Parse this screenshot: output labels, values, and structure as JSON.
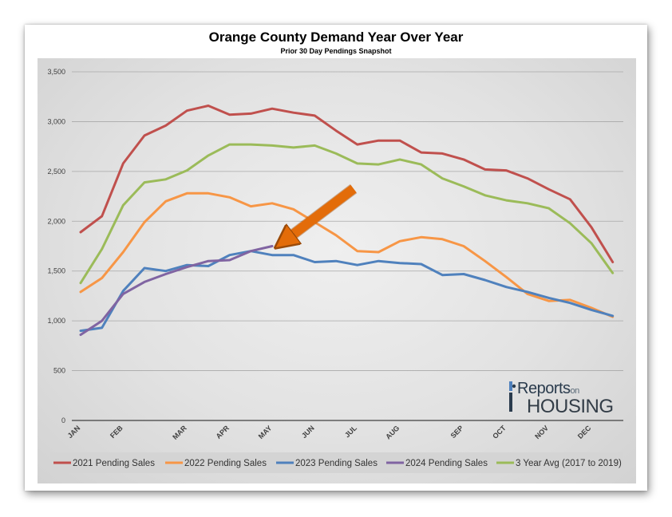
{
  "chart_data": {
    "type": "line",
    "title": "Orange County Demand Year Over Year",
    "subtitle": "Prior 30 Day Pendings Snapshot",
    "xlabel": "",
    "ylabel": "",
    "ylim": [
      0,
      3500
    ],
    "yticks": [
      "0",
      "500",
      "1,000",
      "1,500",
      "2,000",
      "2,500",
      "3,000",
      "3,500"
    ],
    "ytick_values": [
      0,
      500,
      1000,
      1500,
      2000,
      2500,
      3000,
      3500
    ],
    "x_tick_labels": [
      "JAN",
      "FEB",
      "MAR",
      "APR",
      "MAY",
      "JUN",
      "JUL",
      "AUG",
      "SEP",
      "OCT",
      "NOV",
      "DEC"
    ],
    "x_tick_positions": [
      0,
      2,
      5,
      7,
      9,
      11,
      13,
      15,
      18,
      20,
      22,
      24
    ],
    "x_range": [
      0,
      25.5
    ],
    "grid": true,
    "legend_position": "bottom",
    "series": [
      {
        "name": "2021 Pending Sales",
        "color": "#c0504d",
        "x": [
          0,
          1,
          2,
          3,
          4,
          5,
          6,
          7,
          8,
          9,
          10,
          11,
          12,
          13,
          14,
          15,
          16,
          17,
          18,
          19,
          20,
          21,
          22,
          23,
          24,
          25
        ],
        "values": [
          1890,
          2050,
          2580,
          2860,
          2960,
          3110,
          3160,
          3070,
          3080,
          3130,
          3090,
          3060,
          2910,
          2770,
          2810,
          2810,
          2690,
          2680,
          2620,
          2520,
          2510,
          2430,
          2320,
          2220,
          1940,
          1590
        ]
      },
      {
        "name": "2022 Pending Sales",
        "color": "#f79646",
        "x": [
          0,
          1,
          2,
          3,
          4,
          5,
          6,
          7,
          8,
          9,
          10,
          11,
          12,
          13,
          14,
          15,
          16,
          17,
          18,
          19,
          20,
          21,
          22,
          23,
          24,
          25
        ],
        "values": [
          1290,
          1430,
          1690,
          1990,
          2200,
          2280,
          2280,
          2240,
          2150,
          2180,
          2120,
          1990,
          1860,
          1700,
          1690,
          1800,
          1840,
          1820,
          1750,
          1600,
          1440,
          1270,
          1200,
          1210,
          1130,
          1040
        ]
      },
      {
        "name": "2023 Pending Sales",
        "color": "#4f81bd",
        "x": [
          0,
          1,
          2,
          3,
          4,
          5,
          6,
          7,
          8,
          9,
          10,
          11,
          12,
          13,
          14,
          15,
          16,
          17,
          18,
          19,
          20,
          21,
          22,
          23,
          24,
          25
        ],
        "values": [
          900,
          930,
          1300,
          1530,
          1500,
          1560,
          1550,
          1660,
          1700,
          1660,
          1660,
          1590,
          1600,
          1560,
          1600,
          1580,
          1570,
          1460,
          1470,
          1410,
          1340,
          1290,
          1230,
          1180,
          1110,
          1050
        ]
      },
      {
        "name": "2024 Pending Sales",
        "color": "#8064a2",
        "x": [
          0,
          1,
          2,
          3,
          4,
          5,
          6,
          7,
          8,
          9
        ],
        "values": [
          860,
          1000,
          1270,
          1390,
          1470,
          1540,
          1600,
          1610,
          1700,
          1750
        ]
      },
      {
        "name": "3 Year Avg (2017 to 2019)",
        "color": "#9bbb59",
        "x": [
          0,
          1,
          2,
          3,
          4,
          5,
          6,
          7,
          8,
          9,
          10,
          11,
          12,
          13,
          14,
          15,
          16,
          17,
          18,
          19,
          20,
          21,
          22,
          23,
          24,
          25
        ],
        "values": [
          1380,
          1720,
          2160,
          2390,
          2420,
          2510,
          2660,
          2770,
          2770,
          2760,
          2740,
          2760,
          2680,
          2580,
          2570,
          2620,
          2570,
          2430,
          2350,
          2260,
          2210,
          2180,
          2130,
          1980,
          1780,
          1480
        ]
      }
    ],
    "annotations": [
      {
        "type": "arrow",
        "color": "#e36c09",
        "points_to": {
          "x": 9,
          "y": 1750
        }
      }
    ]
  },
  "logo": {
    "reports": "Reports",
    "on": "on",
    "housing": "HOUSING"
  }
}
